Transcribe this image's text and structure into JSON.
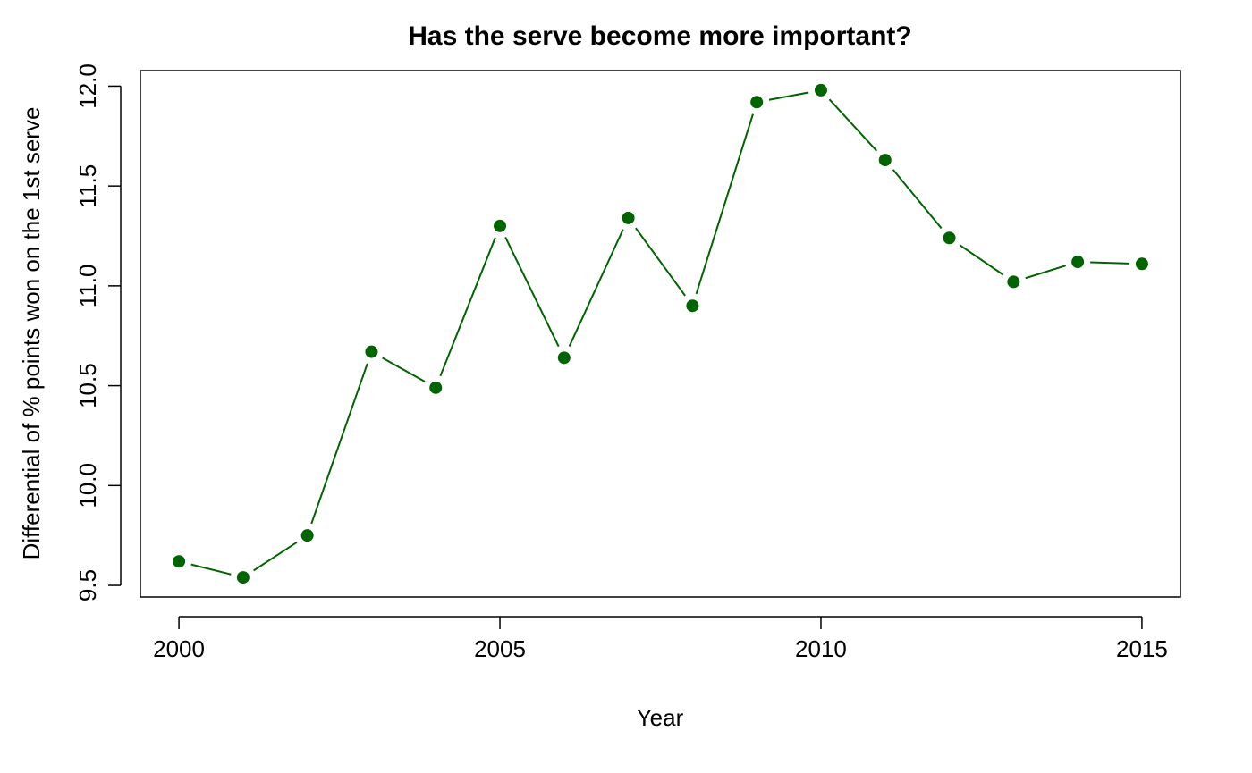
{
  "chart_data": {
    "type": "line",
    "title": "Has the serve become more important?",
    "x_label": "Year",
    "y_label": "Differential of % points won on the 1st serve",
    "x": [
      2000,
      2001,
      2002,
      2003,
      2004,
      2005,
      2006,
      2007,
      2008,
      2009,
      2010,
      2011,
      2012,
      2013,
      2014,
      2015
    ],
    "series": [
      {
        "name": "Differential",
        "color": "#006400",
        "values": [
          9.62,
          9.54,
          9.75,
          10.67,
          10.49,
          11.3,
          10.64,
          11.34,
          10.9,
          11.92,
          11.98,
          11.63,
          11.24,
          11.02,
          11.12,
          11.11
        ]
      }
    ],
    "xlim": [
      1999.4,
      2015.6
    ],
    "xticks": [
      2000,
      2005,
      2010,
      2015
    ],
    "ylim": [
      9.442,
      12.078
    ],
    "yticks": [
      {
        "value": 9.5,
        "label": "9.5"
      },
      {
        "value": 10,
        "label": "10.0"
      },
      {
        "value": 10.5,
        "label": "10.5"
      },
      {
        "value": 11,
        "label": "11.0"
      },
      {
        "value": 11.5,
        "label": "11.5"
      },
      {
        "value": 12,
        "label": "12.0"
      }
    ],
    "grid": false
  }
}
